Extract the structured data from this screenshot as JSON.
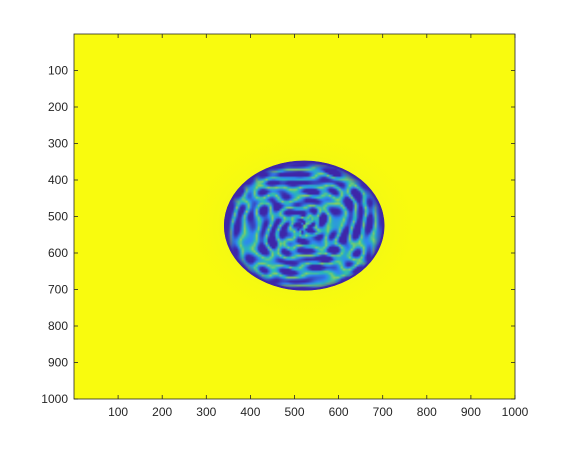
{
  "chart_data": {
    "type": "heatmap",
    "title": "",
    "xlabel": "",
    "ylabel": "",
    "xlim": [
      0,
      1000
    ],
    "ylim": [
      1000,
      0
    ],
    "y_axis_direction": "reversed",
    "x_ticks": [
      100,
      200,
      300,
      400,
      500,
      600,
      700,
      800,
      900,
      1000
    ],
    "y_ticks": [
      100,
      200,
      300,
      400,
      500,
      600,
      700,
      800,
      900,
      1000
    ],
    "x_tick_labels": [
      "100",
      "200",
      "300",
      "400",
      "500",
      "600",
      "700",
      "800",
      "900",
      "1000"
    ],
    "y_tick_labels": [
      "100",
      "200",
      "300",
      "400",
      "500",
      "600",
      "700",
      "800",
      "900",
      "1000"
    ],
    "grid": false,
    "legend": "none",
    "colormap": "parula",
    "background_color": "#f9fb0e",
    "pattern": {
      "description": "labyrinthine Turing pattern inside ellipse",
      "center": [
        522,
        525
      ],
      "radius_x": 182,
      "radius_y": 178,
      "stripe_colors": [
        "#3e26a8",
        "#2e87f0",
        "#29bbb6",
        "#8cd15a"
      ]
    }
  }
}
